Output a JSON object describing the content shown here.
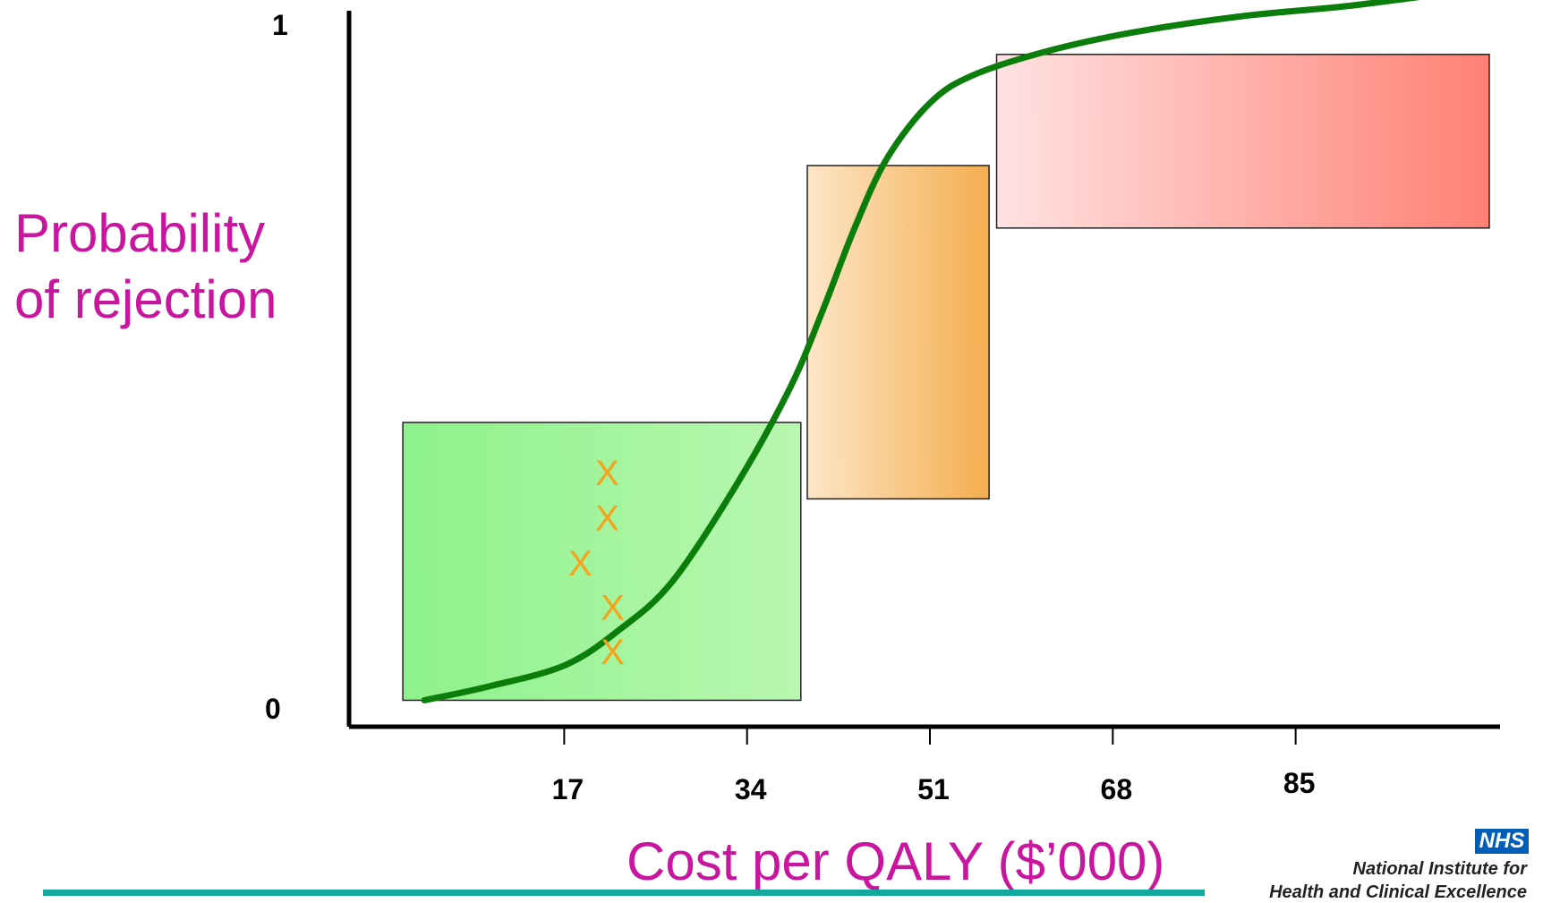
{
  "chart_data": {
    "type": "line",
    "xlabel": "Cost per QALY ($'000)",
    "ylabel_lines": [
      "Probability",
      "of rejection"
    ],
    "x_ticks": [
      17,
      34,
      51,
      68,
      85
    ],
    "y_ticks": [
      "0",
      "1"
    ],
    "xlim": [
      -3,
      104
    ],
    "ylim": [
      0,
      1
    ],
    "series": [
      {
        "color": "#0b7d0b",
        "x": [
          4,
          10,
          17,
          22,
          27,
          33,
          38,
          41,
          44,
          47,
          51,
          55,
          62,
          70,
          80,
          90,
          100
        ],
        "y": [
          0.02,
          0.04,
          0.07,
          0.12,
          0.19,
          0.33,
          0.47,
          0.58,
          0.7,
          0.8,
          0.88,
          0.92,
          0.955,
          0.982,
          1.005,
          1.02,
          1.04
        ]
      }
    ],
    "zones": [
      {
        "x0": 2,
        "x1": 39,
        "y0": 0.02,
        "y1": 0.42,
        "color_from": "#8ef28a",
        "color_to": "#b8f7b0"
      },
      {
        "x0": 39.6,
        "x1": 56.5,
        "y0": 0.31,
        "y1": 0.79,
        "color_from": "#fde6c7",
        "color_to": "#f4ad4e"
      },
      {
        "x0": 57.2,
        "x1": 103,
        "y0": 0.7,
        "y1": 0.95,
        "color_from": "#ffe2e2",
        "color_to": "#ff8074"
      }
    ],
    "markers": {
      "symbol": "X",
      "color": "#f5a31b",
      "points": [
        [
          21,
          0.33
        ],
        [
          21,
          0.265
        ],
        [
          18.5,
          0.2
        ],
        [
          21.5,
          0.136
        ],
        [
          21.5,
          0.072
        ]
      ]
    }
  },
  "labels": {
    "y_tick_top": "1",
    "y_tick_bottom": "0",
    "ylabel_line1": "Probability",
    "ylabel_line2": "of rejection",
    "xlabel": "Cost per QALY ($’000)"
  },
  "branding": {
    "logo": "NHS",
    "org_line1": "National Institute for",
    "org_line2": "Health and Clinical Excellence"
  },
  "colors": {
    "accent_label": "#c8169f",
    "rule": "#13a89e",
    "curve": "#0b7d0b",
    "marker": "#f5a31b"
  }
}
